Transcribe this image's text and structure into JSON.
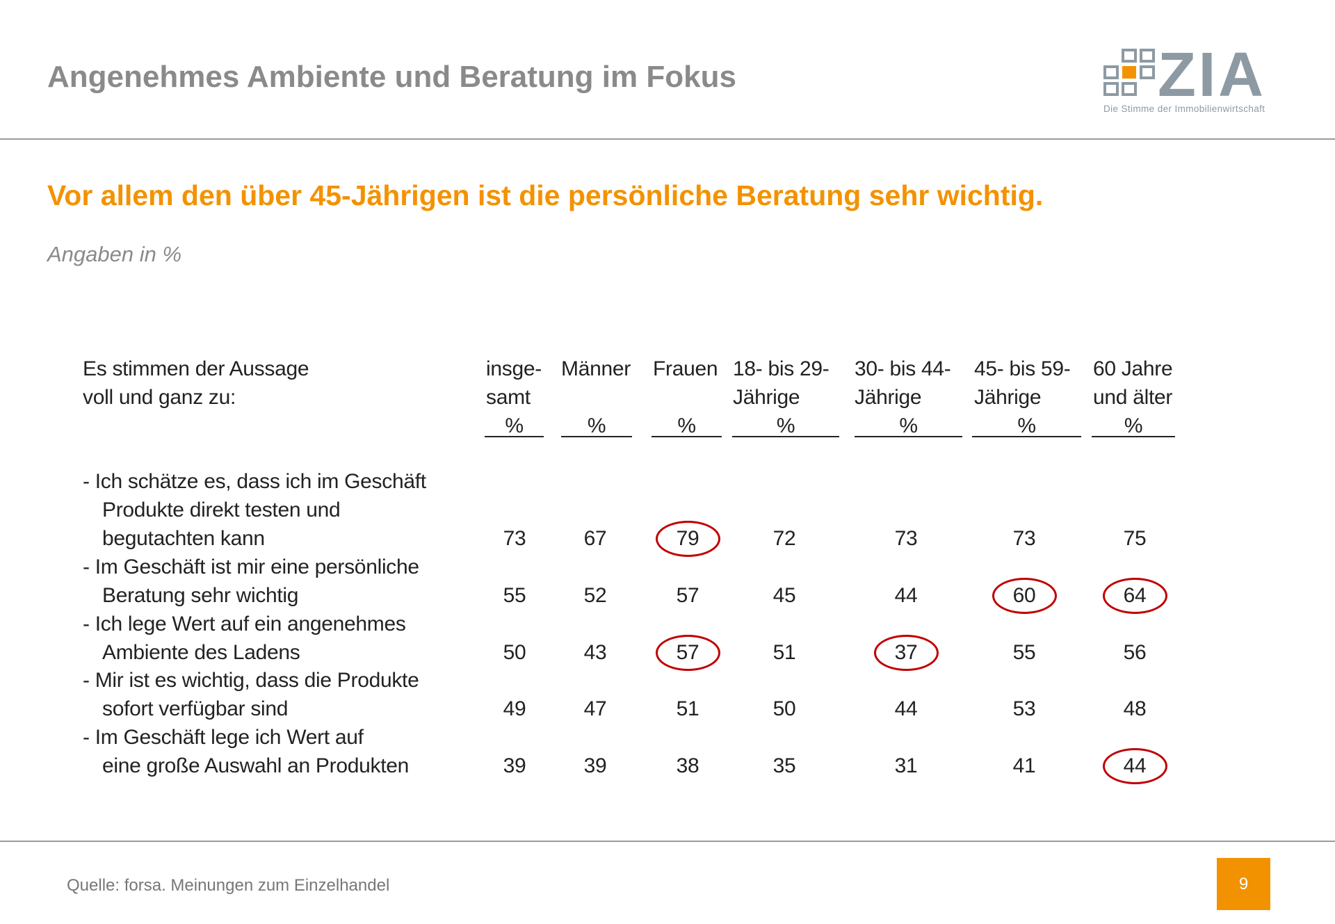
{
  "title": "Angenehmes Ambiente und Beratung im Fokus",
  "logo": {
    "text": "ZIA",
    "tagline": "Die Stimme der Immobilienwirtschaft",
    "accent": "#f39200",
    "gray": "#8d9aa3"
  },
  "subtitle": "Vor allem den über 45-Jährigen ist die persönliche Beratung sehr wichtig.",
  "note": "Angaben in %",
  "table": {
    "row_header": [
      "Es stimmen der Aussage",
      "voll und ganz zu:"
    ],
    "columns": [
      {
        "lines": [
          "insge-",
          "samt"
        ],
        "unit": "%"
      },
      {
        "lines": [
          "Männer"
        ],
        "unit": "%"
      },
      {
        "lines": [
          "Frauen"
        ],
        "unit": "%"
      },
      {
        "lines": [
          "18- bis 29-",
          "Jährige"
        ],
        "unit": "%"
      },
      {
        "lines": [
          "30- bis 44-",
          "Jährige"
        ],
        "unit": "%"
      },
      {
        "lines": [
          "45- bis 59-",
          "Jährige"
        ],
        "unit": "%"
      },
      {
        "lines": [
          "60 Jahre",
          "und älter"
        ],
        "unit": "%"
      }
    ],
    "rows": [
      {
        "lines": [
          "- Ich schätze es, dass ich im Geschäft",
          "Produkte direkt testen und",
          "begutachten kann"
        ],
        "values": [
          "73",
          "67",
          "79",
          "72",
          "73",
          "73",
          "75"
        ],
        "circled": [
          2
        ]
      },
      {
        "lines": [
          "- Im Geschäft ist mir eine persönliche",
          "Beratung sehr wichtig"
        ],
        "values": [
          "55",
          "52",
          "57",
          "45",
          "44",
          "60",
          "64"
        ],
        "circled": [
          5,
          6
        ]
      },
      {
        "lines": [
          "- Ich lege Wert auf ein angenehmes",
          "Ambiente des Ladens"
        ],
        "values": [
          "50",
          "43",
          "57",
          "51",
          "37",
          "55",
          "56"
        ],
        "circled": [
          2,
          4
        ]
      },
      {
        "lines": [
          "- Mir ist es wichtig, dass die Produkte",
          "sofort verfügbar sind"
        ],
        "values": [
          "49",
          "47",
          "51",
          "50",
          "44",
          "53",
          "48"
        ],
        "circled": []
      },
      {
        "lines": [
          "- Im Geschäft lege ich Wert auf",
          "eine große Auswahl an Produkten"
        ],
        "values": [
          "39",
          "39",
          "38",
          "35",
          "31",
          "41",
          "44"
        ],
        "circled": [
          6
        ]
      }
    ],
    "highlight_color": "#c00000"
  },
  "source": "Quelle: forsa. Meinungen zum Einzelhandel",
  "page_number": "9"
}
